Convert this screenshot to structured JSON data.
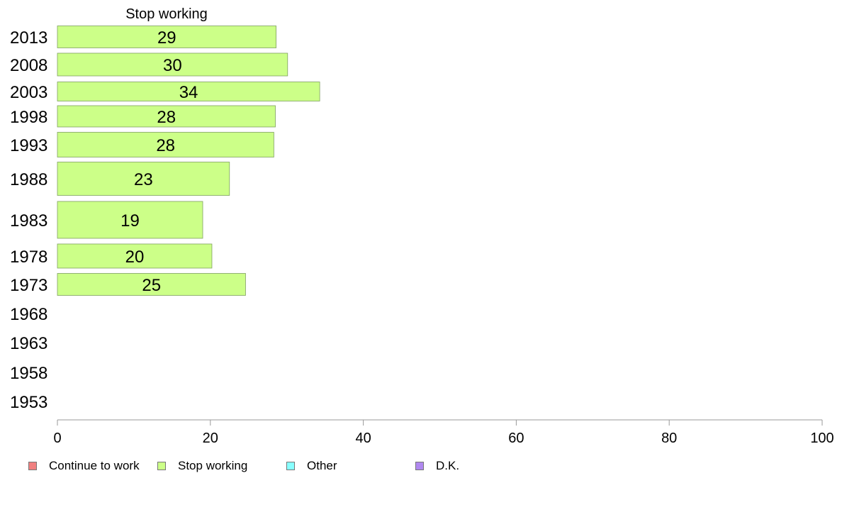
{
  "chart_data": {
    "type": "bar",
    "orientation": "horizontal",
    "title": "Stop working",
    "categories": [
      "2013",
      "2008",
      "2003",
      "1998",
      "1993",
      "1988",
      "1983",
      "1978",
      "1973",
      "1968",
      "1963",
      "1958",
      "1953"
    ],
    "series": [
      {
        "name": "Stop working",
        "color": "#ccff88",
        "values": [
          29,
          30,
          34,
          28,
          28,
          23,
          19,
          20,
          25,
          null,
          null,
          null,
          null
        ]
      }
    ],
    "xlim": [
      0,
      100
    ],
    "xticks": [
      0,
      20,
      40,
      60,
      80,
      100
    ],
    "value_precision": {
      "2013": 28.6,
      "2008": 30.1,
      "2003": 34.3,
      "1998": 28.5,
      "1993": 28.3,
      "1988": 22.5,
      "1983": 19.0,
      "1978": 20.2,
      "1973": 24.6
    },
    "legend": {
      "position": "bottom-left",
      "items": [
        {
          "label": "Continue to work",
          "color": "#f08080"
        },
        {
          "label": "Stop working",
          "color": "#ccff88"
        },
        {
          "label": "Other",
          "color": "#88ffff"
        },
        {
          "label": "D.K.",
          "color": "#b088f0"
        }
      ]
    },
    "grid": false
  }
}
